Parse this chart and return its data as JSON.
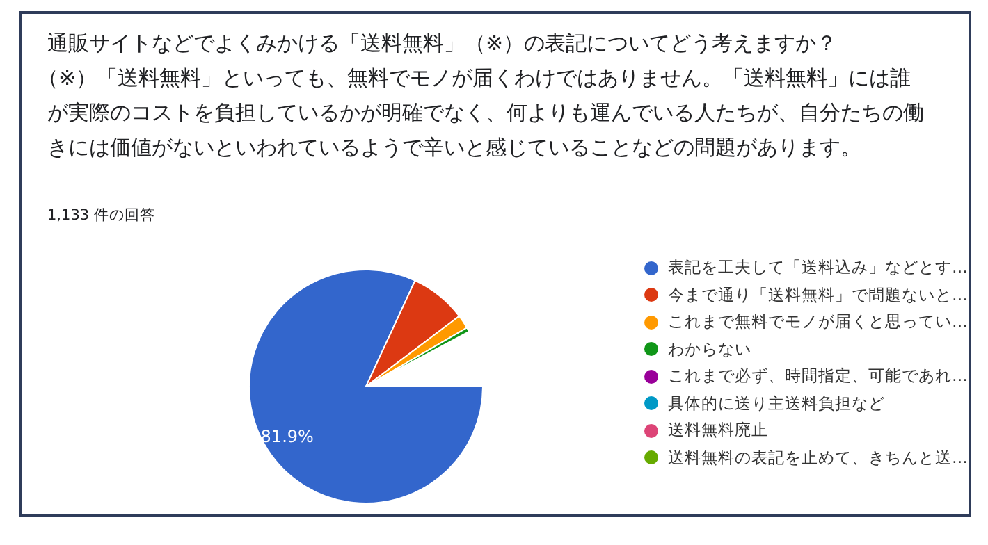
{
  "chart_data": {
    "type": "pie",
    "title": "通販サイトなどでよくみかける「送料無料」（※）の表記についてどう考えますか？",
    "subtitle": "（※）「送料無料」といっても、無料でモノが届くわけではありません。「送料無料」には誰が実際のコストを負担しているかが明確でなく、何よりも運んでいる人たちが、自分たちの働きには価値がないといわれているようで辛いと感じていることなどの問題があります。",
    "annotations": [
      "1,133 件の回答"
    ],
    "categories": [
      "表記を工夫して「送料込み」などとす…",
      "今まで通り「送料無料」で問題ないと…",
      "これまで無料でモノが届くと思ってい…",
      "わからない",
      "これまで必ず、時間指定、可能であれ…",
      "具体的に送り主送料負担など",
      "送料無料廃止",
      "送料無料の表記を止めて、きちんと送…"
    ],
    "values": [
      81.9,
      7.8,
      1.9,
      0.6,
      null,
      null,
      null,
      null
    ],
    "value_labels": [
      "81.9%",
      null,
      null,
      null,
      null,
      null,
      null,
      null
    ],
    "colors": [
      "#3366cc",
      "#dc3912",
      "#ff9900",
      "#109618",
      "#990099",
      "#0099c6",
      "#dd4477",
      "#66aa00"
    ],
    "legend": "right"
  }
}
